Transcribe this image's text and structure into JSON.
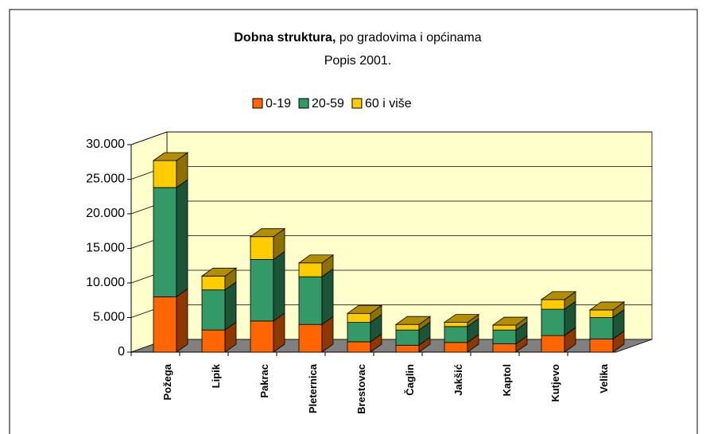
{
  "chart_data": {
    "type": "bar3d_stacked",
    "title_parts": [
      "Dobna struktura,",
      "po gradovima i općinama"
    ],
    "subtitle": "Popis 2001.",
    "categories": [
      "Požega",
      "Lipik",
      "Pakrac",
      "Pleternica",
      "Brestovac",
      "Čaglin",
      "Jakšić",
      "Kaptol",
      "Kutjevo",
      "Velika"
    ],
    "series": [
      {
        "name": "0-19",
        "color": "#ff6600",
        "values": [
          8000,
          3200,
          4500,
          4000,
          1500,
          1000,
          1400,
          1200,
          2400,
          1900
        ]
      },
      {
        "name": "20-59",
        "color": "#339966",
        "values": [
          15800,
          5800,
          8900,
          6900,
          2800,
          2200,
          2300,
          2000,
          3800,
          3100
        ]
      },
      {
        "name": "60 i više",
        "color": "#ffcc00",
        "values": [
          3900,
          2000,
          3300,
          2000,
          1300,
          800,
          600,
          700,
          1400,
          1100
        ]
      }
    ],
    "ylim": [
      0,
      30000
    ],
    "yticks": [
      0,
      {
        "value": 5000,
        "label": "5.000"
      },
      {
        "value": 10000,
        "label": "10.000"
      },
      {
        "value": 15000,
        "label": "15.000"
      },
      {
        "value": 20000,
        "label": "20.000"
      },
      {
        "value": 25000,
        "label": "25.000"
      },
      {
        "value": 30000,
        "label": "30.000"
      }
    ],
    "grid": true,
    "legend": "top"
  }
}
